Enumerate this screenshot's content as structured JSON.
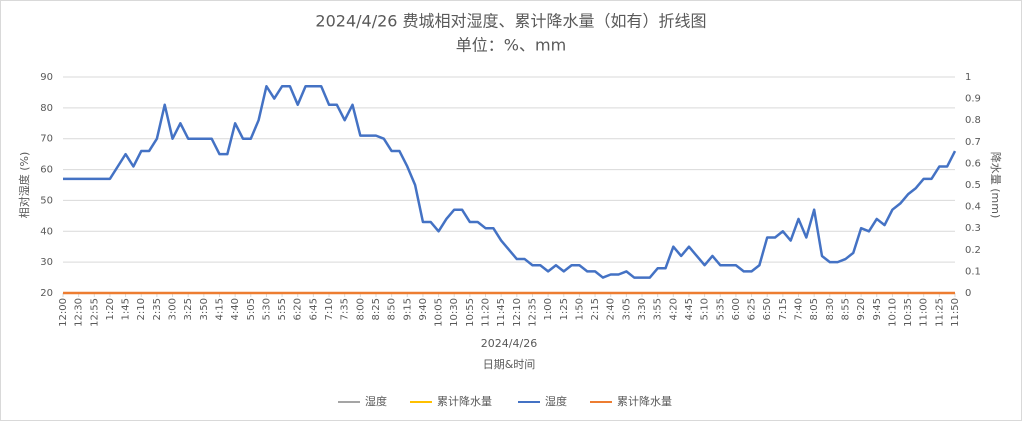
{
  "chart_data": {
    "type": "line",
    "title": "2024/4/26 费城相对湿度、累计降水量（如有）折线图",
    "subtitle": "单位：%、mm",
    "x_group_label": "2024/4/26",
    "xlabel": "日期&时间",
    "ylabel": "相对湿度 (%)",
    "y2label": "降水量 (mm)",
    "ylim": [
      20,
      90
    ],
    "yticks": [
      20,
      30,
      40,
      50,
      60,
      70,
      80,
      90
    ],
    "y2lim": [
      0,
      1
    ],
    "y2ticks": [
      0,
      0.1,
      0.2,
      0.3,
      0.4,
      0.5,
      0.6,
      0.7,
      0.8,
      0.9,
      1
    ],
    "grid": true,
    "legend_position": "bottom",
    "legend": [
      {
        "name": "湿度",
        "color": "#a5a5a5"
      },
      {
        "name": "累计降水量",
        "color": "#ffc000"
      },
      {
        "name": "湿度",
        "color": "#4472c4"
      },
      {
        "name": "累计降水量",
        "color": "#ed7d31"
      }
    ],
    "categories": [
      "12:00",
      null,
      "12:30",
      null,
      "12:55",
      null,
      "1:20",
      null,
      "1:45",
      null,
      "2:10",
      null,
      "2:35",
      null,
      "3:00",
      null,
      "3:25",
      null,
      "3:50",
      null,
      "4:15",
      null,
      "4:40",
      null,
      "5:05",
      null,
      "5:30",
      null,
      "5:55",
      null,
      "6:20",
      null,
      "6:45",
      null,
      "7:10",
      null,
      "7:35",
      null,
      "8:00",
      null,
      "8:25",
      null,
      "8:50",
      null,
      "9:15",
      null,
      "9:40",
      null,
      "10:05",
      null,
      "10:30",
      null,
      "10:55",
      null,
      "11:20",
      null,
      "11:45",
      null,
      "12:10",
      null,
      "12:35",
      null,
      "1:00",
      null,
      "1:25",
      null,
      "1:50",
      null,
      "2:15",
      null,
      "2:40",
      null,
      "3:05",
      null,
      "3:30",
      null,
      "3:55",
      null,
      "4:20",
      null,
      "4:45",
      null,
      "5:10",
      null,
      "5:35",
      null,
      "6:00",
      null,
      "6:25",
      null,
      "6:50",
      null,
      "7:15",
      null,
      "7:40",
      null,
      "8:05",
      null,
      "8:30",
      null,
      "8:55",
      null,
      "9:20",
      null,
      "9:45",
      null,
      "10:10",
      null,
      "10:35",
      null,
      "11:00",
      null,
      "11:25",
      null,
      "11:50"
    ],
    "series": [
      {
        "name": "湿度",
        "color": "#4472c4",
        "values": [
          57,
          57,
          57,
          57,
          57,
          57,
          57,
          61,
          65,
          61,
          66,
          66,
          70,
          81,
          70,
          75,
          70,
          70,
          70,
          70,
          65,
          65,
          75,
          70,
          70,
          76,
          87,
          83,
          87,
          87,
          81,
          87,
          87,
          87,
          81,
          81,
          76,
          81,
          71,
          71,
          71,
          70,
          66,
          66,
          61,
          55,
          43,
          43,
          40,
          44,
          47,
          47,
          43,
          43,
          41,
          41,
          37,
          34,
          31,
          31,
          29,
          29,
          27,
          29,
          27,
          29,
          29,
          27,
          27,
          25,
          26,
          26,
          27,
          25,
          25,
          25,
          28,
          28,
          35,
          32,
          35,
          32,
          29,
          32,
          29,
          29,
          29,
          27,
          27,
          29,
          38,
          38,
          40,
          37,
          44,
          38,
          47,
          32,
          30,
          30,
          31,
          33,
          41,
          40,
          44,
          42,
          47,
          49,
          52,
          54,
          57,
          57,
          61,
          61,
          66
        ]
      },
      {
        "name": "累计降水量",
        "color": "#ed7d31",
        "axis": "y2",
        "values": [
          0,
          0,
          0,
          0,
          0,
          0,
          0,
          0,
          0,
          0,
          0,
          0,
          0,
          0,
          0,
          0,
          0,
          0,
          0,
          0,
          0,
          0,
          0,
          0,
          0,
          0,
          0,
          0,
          0,
          0,
          0,
          0,
          0,
          0,
          0,
          0,
          0,
          0,
          0,
          0,
          0,
          0,
          0,
          0,
          0,
          0,
          0,
          0,
          0,
          0,
          0,
          0,
          0,
          0,
          0,
          0,
          0,
          0,
          0,
          0,
          0,
          0,
          0,
          0,
          0,
          0,
          0,
          0,
          0,
          0,
          0,
          0,
          0,
          0,
          0,
          0,
          0,
          0,
          0,
          0,
          0,
          0,
          0,
          0,
          0,
          0,
          0,
          0,
          0,
          0,
          0,
          0,
          0,
          0,
          0,
          0,
          0,
          0,
          0,
          0,
          0,
          0,
          0,
          0,
          0,
          0,
          0,
          0,
          0,
          0,
          0,
          0,
          0,
          0,
          0
        ]
      }
    ]
  }
}
